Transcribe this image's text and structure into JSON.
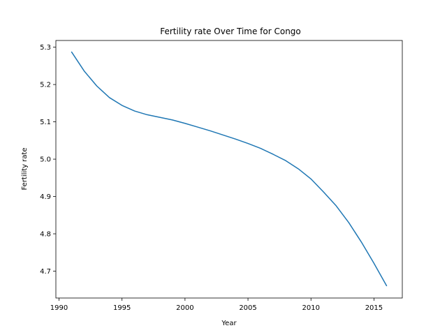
{
  "chart_data": {
    "type": "line",
    "title": "Fertility rate Over Time for Congo",
    "xlabel": "Year",
    "ylabel": "Fertility rate",
    "xlim": [
      1989.75,
      2017.25
    ],
    "ylim": [
      4.628,
      5.318
    ],
    "xticks": [
      1990,
      1995,
      2000,
      2005,
      2010,
      2015
    ],
    "yticks": [
      4.7,
      4.8,
      4.9,
      5.0,
      5.1,
      5.2,
      5.3
    ],
    "ytick_labels": [
      "4.7",
      "4.8",
      "4.9",
      "5.0",
      "5.1",
      "5.2",
      "5.3"
    ],
    "grid": false,
    "legend": "none",
    "series": [
      {
        "color": "#1f77b4",
        "x": [
          1991,
          1992,
          1993,
          1994,
          1995,
          1996,
          1997,
          1998,
          1999,
          2000,
          2001,
          2002,
          2003,
          2004,
          2005,
          2006,
          2007,
          2008,
          2009,
          2010,
          2011,
          2012,
          2013,
          2014,
          2015,
          2016
        ],
        "y": [
          5.287,
          5.236,
          5.196,
          5.165,
          5.144,
          5.129,
          5.119,
          5.112,
          5.105,
          5.096,
          5.086,
          5.076,
          5.065,
          5.054,
          5.042,
          5.029,
          5.013,
          4.996,
          4.974,
          4.947,
          4.912,
          4.875,
          4.83,
          4.778,
          4.721,
          4.661
        ]
      }
    ]
  }
}
